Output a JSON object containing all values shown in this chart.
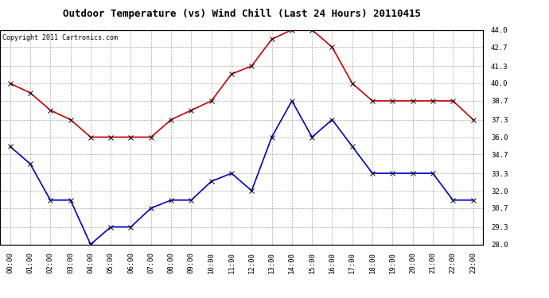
{
  "title": "Outdoor Temperature (vs) Wind Chill (Last 24 Hours) 20110415",
  "copyright": "Copyright 2011 Cartronics.com",
  "hours": [
    "00:00",
    "01:00",
    "02:00",
    "03:00",
    "04:00",
    "05:00",
    "06:00",
    "07:00",
    "08:00",
    "09:00",
    "10:00",
    "11:00",
    "12:00",
    "13:00",
    "14:00",
    "15:00",
    "16:00",
    "17:00",
    "18:00",
    "19:00",
    "20:00",
    "21:00",
    "22:00",
    "23:00"
  ],
  "temp": [
    40.0,
    39.3,
    38.0,
    37.3,
    36.0,
    36.0,
    36.0,
    36.0,
    37.3,
    38.0,
    38.7,
    40.7,
    41.3,
    43.3,
    44.0,
    44.0,
    42.7,
    40.0,
    38.7,
    38.7,
    38.7,
    38.7,
    38.7,
    37.3
  ],
  "windchill": [
    35.3,
    34.0,
    31.3,
    31.3,
    28.0,
    29.3,
    29.3,
    30.7,
    31.3,
    31.3,
    32.7,
    33.3,
    32.0,
    36.0,
    38.7,
    36.0,
    37.3,
    35.3,
    33.3,
    33.3,
    33.3,
    33.3,
    31.3,
    31.3
  ],
  "temp_color": "#cc0000",
  "windchill_color": "#0000cc",
  "marker": "x",
  "marker_size": 4,
  "line_width": 1.2,
  "ylim": [
    28.0,
    44.0
  ],
  "yticks": [
    28.0,
    29.3,
    30.7,
    32.0,
    33.3,
    34.7,
    36.0,
    37.3,
    38.7,
    40.0,
    41.3,
    42.7,
    44.0
  ],
  "background_color": "#ffffff",
  "grid_color": "#aaaaaa",
  "title_fontsize": 9,
  "copyright_fontsize": 6,
  "tick_fontsize": 6.5
}
